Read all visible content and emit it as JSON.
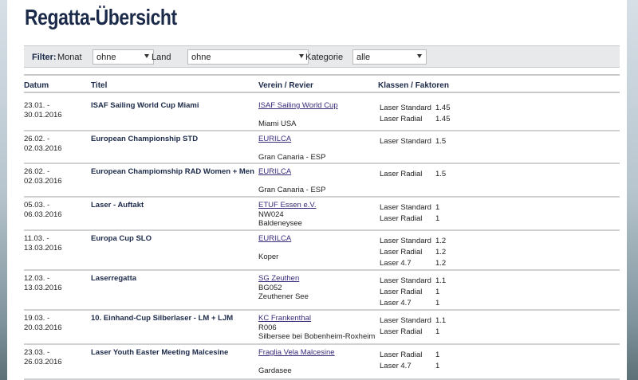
{
  "page": {
    "title": "Regatta-Übersicht"
  },
  "filter": {
    "label": "Filter:",
    "month_label": "Monat",
    "month_value": "ohne",
    "land_label": "Land",
    "land_value": "ohne",
    "category_label": "Kategorie",
    "category_value": "alle"
  },
  "table": {
    "headers": {
      "date": "Datum",
      "title": "Titel",
      "club": "Verein / Revier",
      "classes": "Klassen / Faktoren"
    },
    "rows": [
      {
        "date_from": "23.01. -",
        "date_to": "30.01.2016",
        "title": "ISAF Sailing World Cup Miami",
        "club_link": "ISAF Sailing World Cup",
        "club_lines": [
          "",
          "Miami USA"
        ],
        "classes": [
          {
            "name": "Laser Standard",
            "factor": "1.45"
          },
          {
            "name": "Laser Radial",
            "factor": "1.45"
          }
        ]
      },
      {
        "date_from": "26.02. -",
        "date_to": "02.03.2016",
        "title": "European Championship STD",
        "club_link": "EURILCA",
        "club_lines": [
          "",
          "Gran Canaria - ESP"
        ],
        "classes": [
          {
            "name": "Laser Standard",
            "factor": "1.5"
          }
        ]
      },
      {
        "date_from": "26.02. -",
        "date_to": "02.03.2016",
        "title": "European Champiomship RAD Women + Men",
        "club_link": "EURILCA",
        "club_lines": [
          "",
          "Gran Canaria - ESP"
        ],
        "classes": [
          {
            "name": "Laser Radial",
            "factor": "1.5"
          }
        ]
      },
      {
        "date_from": "05.03. -",
        "date_to": "06.03.2016",
        "title": "Laser - Auftakt",
        "club_link": "ETUF Essen e.V.",
        "club_lines": [
          "NW024",
          "Baldeneysee"
        ],
        "classes": [
          {
            "name": "Laser Standard",
            "factor": "1"
          },
          {
            "name": "Laser Radial",
            "factor": "1"
          }
        ]
      },
      {
        "date_from": "11.03. -",
        "date_to": "13.03.2016",
        "title": "Europa Cup SLO",
        "club_link": "EURILCA",
        "club_lines": [
          "",
          "Koper"
        ],
        "classes": [
          {
            "name": "Laser Standard",
            "factor": "1.2"
          },
          {
            "name": "Laser Radial",
            "factor": "1.2"
          },
          {
            "name": "Laser 4.7",
            "factor": "1.2"
          }
        ]
      },
      {
        "date_from": "12.03. -",
        "date_to": "13.03.2016",
        "title": "Laserregatta",
        "club_link": "SG Zeuthen",
        "club_lines": [
          "BG052",
          "Zeuthener See"
        ],
        "classes": [
          {
            "name": "Laser Standard",
            "factor": "1.1"
          },
          {
            "name": "Laser Radial",
            "factor": "1"
          },
          {
            "name": "Laser 4.7",
            "factor": "1"
          }
        ]
      },
      {
        "date_from": "19.03. -",
        "date_to": "20.03.2016",
        "title": "10. Einhand-Cup Silberlaser - LM + LJM",
        "club_link": "KC Frankenthal",
        "club_lines": [
          "R006",
          "Silbersee bei Bobenheim-Roxheim"
        ],
        "classes": [
          {
            "name": "Laser Standard",
            "factor": "1.1"
          },
          {
            "name": "Laser Radial",
            "factor": "1"
          }
        ]
      },
      {
        "date_from": "23.03. -",
        "date_to": "26.03.2016",
        "title": "Laser Youth Easter Meeting Malcesine",
        "club_link": "Fraglia Vela Malcesine",
        "club_lines": [
          "",
          "Gardasee"
        ],
        "classes": [
          {
            "name": "Laser Radial",
            "factor": "1"
          },
          {
            "name": "Laser 4.7",
            "factor": "1"
          }
        ]
      }
    ]
  }
}
